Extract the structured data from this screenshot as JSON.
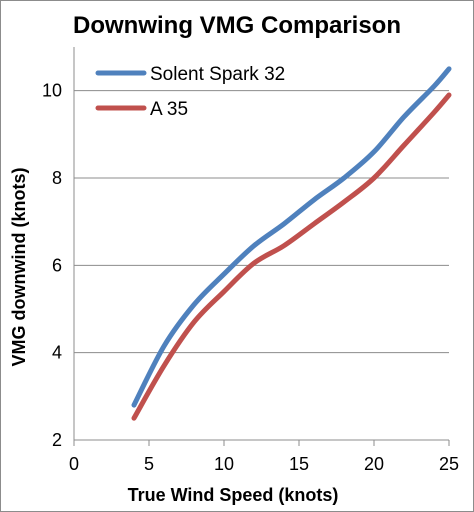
{
  "chart_data": {
    "type": "line",
    "title": "Downwing VMG Comparison",
    "xlabel": "True Wind Speed (knots)",
    "ylabel": "VMG downwind (knots)",
    "xlim": [
      0,
      25
    ],
    "ylim": [
      2,
      11
    ],
    "x_ticks": [
      "0",
      "5",
      "10",
      "15",
      "20",
      "25"
    ],
    "y_ticks": [
      "2",
      "4",
      "6",
      "8",
      "10"
    ],
    "grid": true,
    "legend_position": "top-left",
    "series": [
      {
        "name": "Solent Spark 32",
        "color": "#4f81bd",
        "x": [
          4,
          6,
          8,
          10,
          12,
          14,
          16,
          18,
          20,
          22,
          24,
          25
        ],
        "y": [
          2.8,
          4.15,
          5.1,
          5.8,
          6.45,
          6.95,
          7.5,
          8.0,
          8.6,
          9.4,
          10.1,
          10.5
        ]
      },
      {
        "name": "A 35",
        "color": "#c0504d",
        "x": [
          4,
          6,
          8,
          10,
          12,
          14,
          16,
          18,
          20,
          22,
          24,
          25
        ],
        "y": [
          2.5,
          3.7,
          4.7,
          5.4,
          6.05,
          6.45,
          6.95,
          7.45,
          8.0,
          8.75,
          9.5,
          9.9
        ]
      }
    ]
  }
}
